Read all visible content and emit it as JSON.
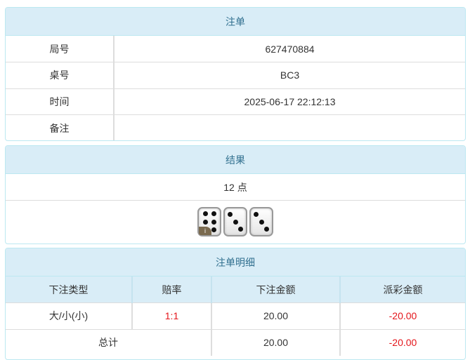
{
  "order": {
    "title": "注单",
    "rows": [
      {
        "label": "局号",
        "value": "627470884"
      },
      {
        "label": "桌号",
        "value": "BC3"
      },
      {
        "label": "时间",
        "value": "2025-06-17 22:12:13"
      },
      {
        "label": "备注",
        "value": ""
      }
    ]
  },
  "result": {
    "title": "结果",
    "points": "12 点",
    "dice": [
      6,
      3,
      3
    ],
    "badge": "i"
  },
  "detail": {
    "title": "注单明细",
    "headers": [
      "下注类型",
      "赔率",
      "下注金额",
      "派彩金额"
    ],
    "rows": [
      {
        "type": "大/小(小)",
        "odds": "1:1",
        "bet": "20.00",
        "payout": "-20.00"
      }
    ],
    "total": {
      "label": "总计",
      "bet": "20.00",
      "payout": "-20.00"
    }
  },
  "colors": {
    "header_bg": "#d9edf7",
    "header_text": "#31708f",
    "negative": "#e4161b"
  }
}
